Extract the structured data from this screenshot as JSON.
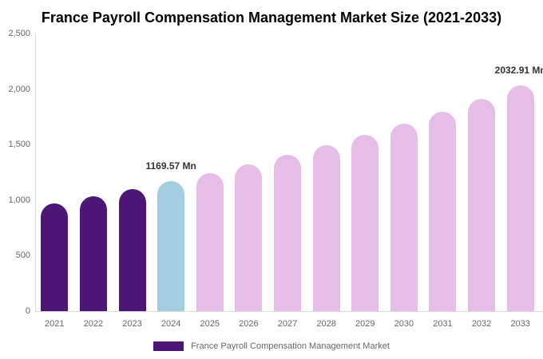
{
  "page": {
    "background": "#ffffff"
  },
  "chart_data": {
    "type": "bar",
    "title": "France Payroll Compensation Management Market Size (2021-2033)",
    "categories": [
      "2021",
      "2022",
      "2023",
      "2024",
      "2025",
      "2026",
      "2027",
      "2028",
      "2029",
      "2030",
      "2031",
      "2032",
      "2033"
    ],
    "values": [
      972,
      1034,
      1100,
      1169.57,
      1243,
      1322,
      1406,
      1495,
      1590,
      1690,
      1797,
      1911,
      2032.91
    ],
    "unit": "Mn",
    "ylim": [
      0,
      2500
    ],
    "y_ticks": {
      "values": [
        0,
        500,
        1000,
        1500,
        2000,
        2500
      ],
      "labels": [
        "0",
        "500",
        "1,000",
        "1,500",
        "2,000",
        "2,500"
      ]
    },
    "grid": "off",
    "xlabel": "",
    "ylabel": "",
    "bar_colors": [
      "#4C1777",
      "#4C1777",
      "#4C1777",
      "#A5CDE1",
      "#E5BDE7",
      "#E5BDE7",
      "#E5BDE7",
      "#E5BDE7",
      "#E5BDE7",
      "#E5BDE7",
      "#E5BDE7",
      "#E5BDE7",
      "#E5BDE7"
    ],
    "colors": {
      "historical": "#4C1777",
      "base_year": "#A5CDE1",
      "forecast": "#E5BDE7",
      "axis_line": "#d9d9d9",
      "axis_text": "#666666",
      "data_label_text": "#333333",
      "title_text": "#000000"
    },
    "data_labels": [
      {
        "category": "2024",
        "text": "1169.57 Mn"
      },
      {
        "category": "2033",
        "text": "2032.91 Mn"
      }
    ],
    "legend": {
      "position": "bottom",
      "label": "France Payroll Compensation Management Market",
      "swatch_color": "#4C1777"
    }
  }
}
